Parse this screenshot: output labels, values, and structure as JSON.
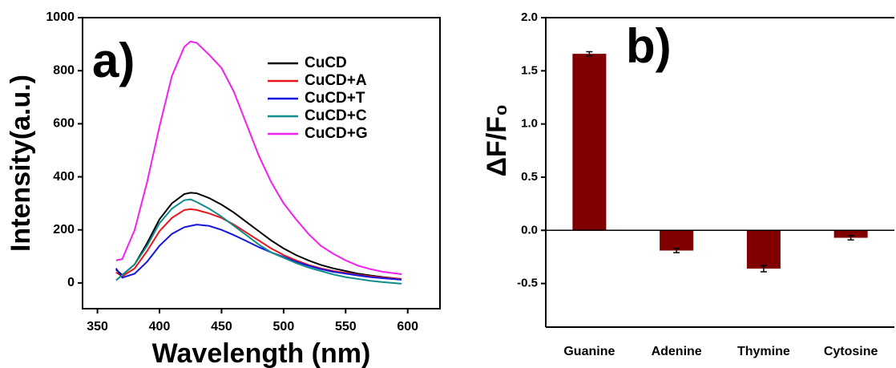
{
  "chart_data": [
    {
      "type": "line",
      "annotation": "a)",
      "xlabel": "Wavelength (nm)",
      "ylabel": "Intensity(a.u.)",
      "x": [
        365,
        370,
        380,
        390,
        400,
        410,
        420,
        425,
        430,
        440,
        450,
        460,
        470,
        480,
        490,
        500,
        510,
        520,
        530,
        540,
        550,
        560,
        570,
        580,
        595
      ],
      "series": [
        {
          "name": "CuCD",
          "color": "#000000",
          "values": [
            50,
            30,
            70,
            150,
            240,
            300,
            335,
            340,
            338,
            320,
            295,
            265,
            230,
            195,
            160,
            130,
            105,
            85,
            68,
            55,
            45,
            35,
            28,
            22,
            15
          ]
        },
        {
          "name": "CuCD+A",
          "color": "#e8161b",
          "values": [
            40,
            25,
            55,
            120,
            195,
            245,
            275,
            278,
            275,
            262,
            245,
            220,
            190,
            160,
            130,
            105,
            85,
            68,
            55,
            45,
            38,
            30,
            25,
            20,
            15
          ]
        },
        {
          "name": "CuCD+T",
          "color": "#1515e0",
          "values": [
            55,
            20,
            35,
            80,
            140,
            185,
            210,
            215,
            220,
            215,
            200,
            180,
            158,
            135,
            115,
            98,
            80,
            65,
            52,
            42,
            35,
            28,
            22,
            18,
            12
          ]
        },
        {
          "name": "CuCD+C",
          "color": "#0f8c8c",
          "values": [
            10,
            30,
            70,
            140,
            225,
            280,
            312,
            315,
            305,
            280,
            250,
            215,
            180,
            145,
            115,
            95,
            75,
            58,
            45,
            32,
            22,
            15,
            8,
            3,
            -3
          ]
        },
        {
          "name": "CuCD+G",
          "color": "#f020f0",
          "values": [
            85,
            90,
            200,
            380,
            590,
            780,
            890,
            910,
            905,
            860,
            810,
            720,
            600,
            480,
            380,
            300,
            240,
            185,
            140,
            110,
            85,
            65,
            52,
            42,
            33
          ]
        }
      ],
      "xlim": [
        338,
        626
      ],
      "ylim": [
        -97,
        1000
      ],
      "xticks": [
        350,
        400,
        450,
        500,
        550,
        600
      ],
      "yticks": [
        0,
        200,
        400,
        600,
        800,
        1000
      ],
      "legend": "upper right"
    },
    {
      "type": "bar",
      "annotation": "b)",
      "ylabel": "ΔF/F₀",
      "categories": [
        "Guanine",
        "Adenine",
        "Thymine",
        "Cytosine"
      ],
      "values": [
        1.66,
        -0.19,
        -0.36,
        -0.07
      ],
      "errors": [
        0.02,
        0.02,
        0.03,
        0.02
      ],
      "color": "#800000",
      "ylim": [
        -0.91,
        2.0
      ],
      "yticks": [
        {
          "value": 2.0,
          "label": "2.0"
        },
        1.5,
        {
          "value": 1.0,
          "label": "1.0"
        },
        0.5,
        {
          "value": 0.0,
          "label": "0.0"
        },
        -0.5
      ]
    }
  ]
}
